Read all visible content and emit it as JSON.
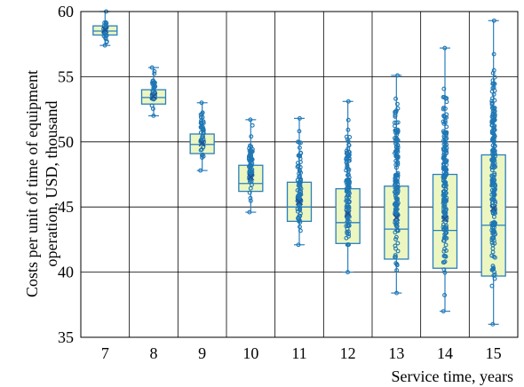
{
  "chart_data": {
    "type": "box",
    "title": "",
    "xlabel": "Service time, years",
    "ylabel_line1": "Costs per unit of time of equipment",
    "ylabel_line2": "operation, USD, thousand",
    "categories": [
      "7",
      "8",
      "9",
      "10",
      "11",
      "12",
      "13",
      "14",
      "15"
    ],
    "ylim": [
      35,
      60
    ],
    "yticks": [
      35,
      40,
      45,
      50,
      55,
      60
    ],
    "grid": true,
    "boxes": [
      {
        "category": "7",
        "min": 57.4,
        "q1": 58.2,
        "median": 58.5,
        "mean": 58.6,
        "q3": 58.9,
        "max": 60.0
      },
      {
        "category": "8",
        "min": 52.0,
        "q1": 52.9,
        "median": 53.4,
        "mean": 53.5,
        "q3": 54.0,
        "max": 55.7
      },
      {
        "category": "9",
        "min": 47.8,
        "q1": 49.1,
        "median": 49.8,
        "mean": 49.9,
        "q3": 50.6,
        "max": 53.0
      },
      {
        "category": "10",
        "min": 44.6,
        "q1": 46.2,
        "median": 46.8,
        "mean": 47.3,
        "q3": 48.2,
        "max": 51.7
      },
      {
        "category": "11",
        "min": 42.1,
        "q1": 43.9,
        "median": 45.0,
        "mean": 45.4,
        "q3": 46.9,
        "max": 51.8
      },
      {
        "category": "12",
        "min": 40.0,
        "q1": 42.2,
        "median": 43.8,
        "mean": 44.5,
        "q3": 46.4,
        "max": 53.1
      },
      {
        "category": "13",
        "min": 38.4,
        "q1": 41.0,
        "median": 43.3,
        "mean": 44.2,
        "q3": 46.6,
        "max": 55.1
      },
      {
        "category": "14",
        "min": 37.0,
        "q1": 40.3,
        "median": 43.2,
        "mean": 44.1,
        "q3": 47.5,
        "max": 57.2
      },
      {
        "category": "15",
        "min": 36.0,
        "q1": 39.7,
        "median": 43.6,
        "mean": 44.9,
        "q3": 49.0,
        "max": 59.3
      }
    ],
    "colors": {
      "box_fill": "#ecf6c0",
      "box_stroke": "#2a7fbf",
      "points": "#1f77b4",
      "grid": "#000000"
    }
  }
}
